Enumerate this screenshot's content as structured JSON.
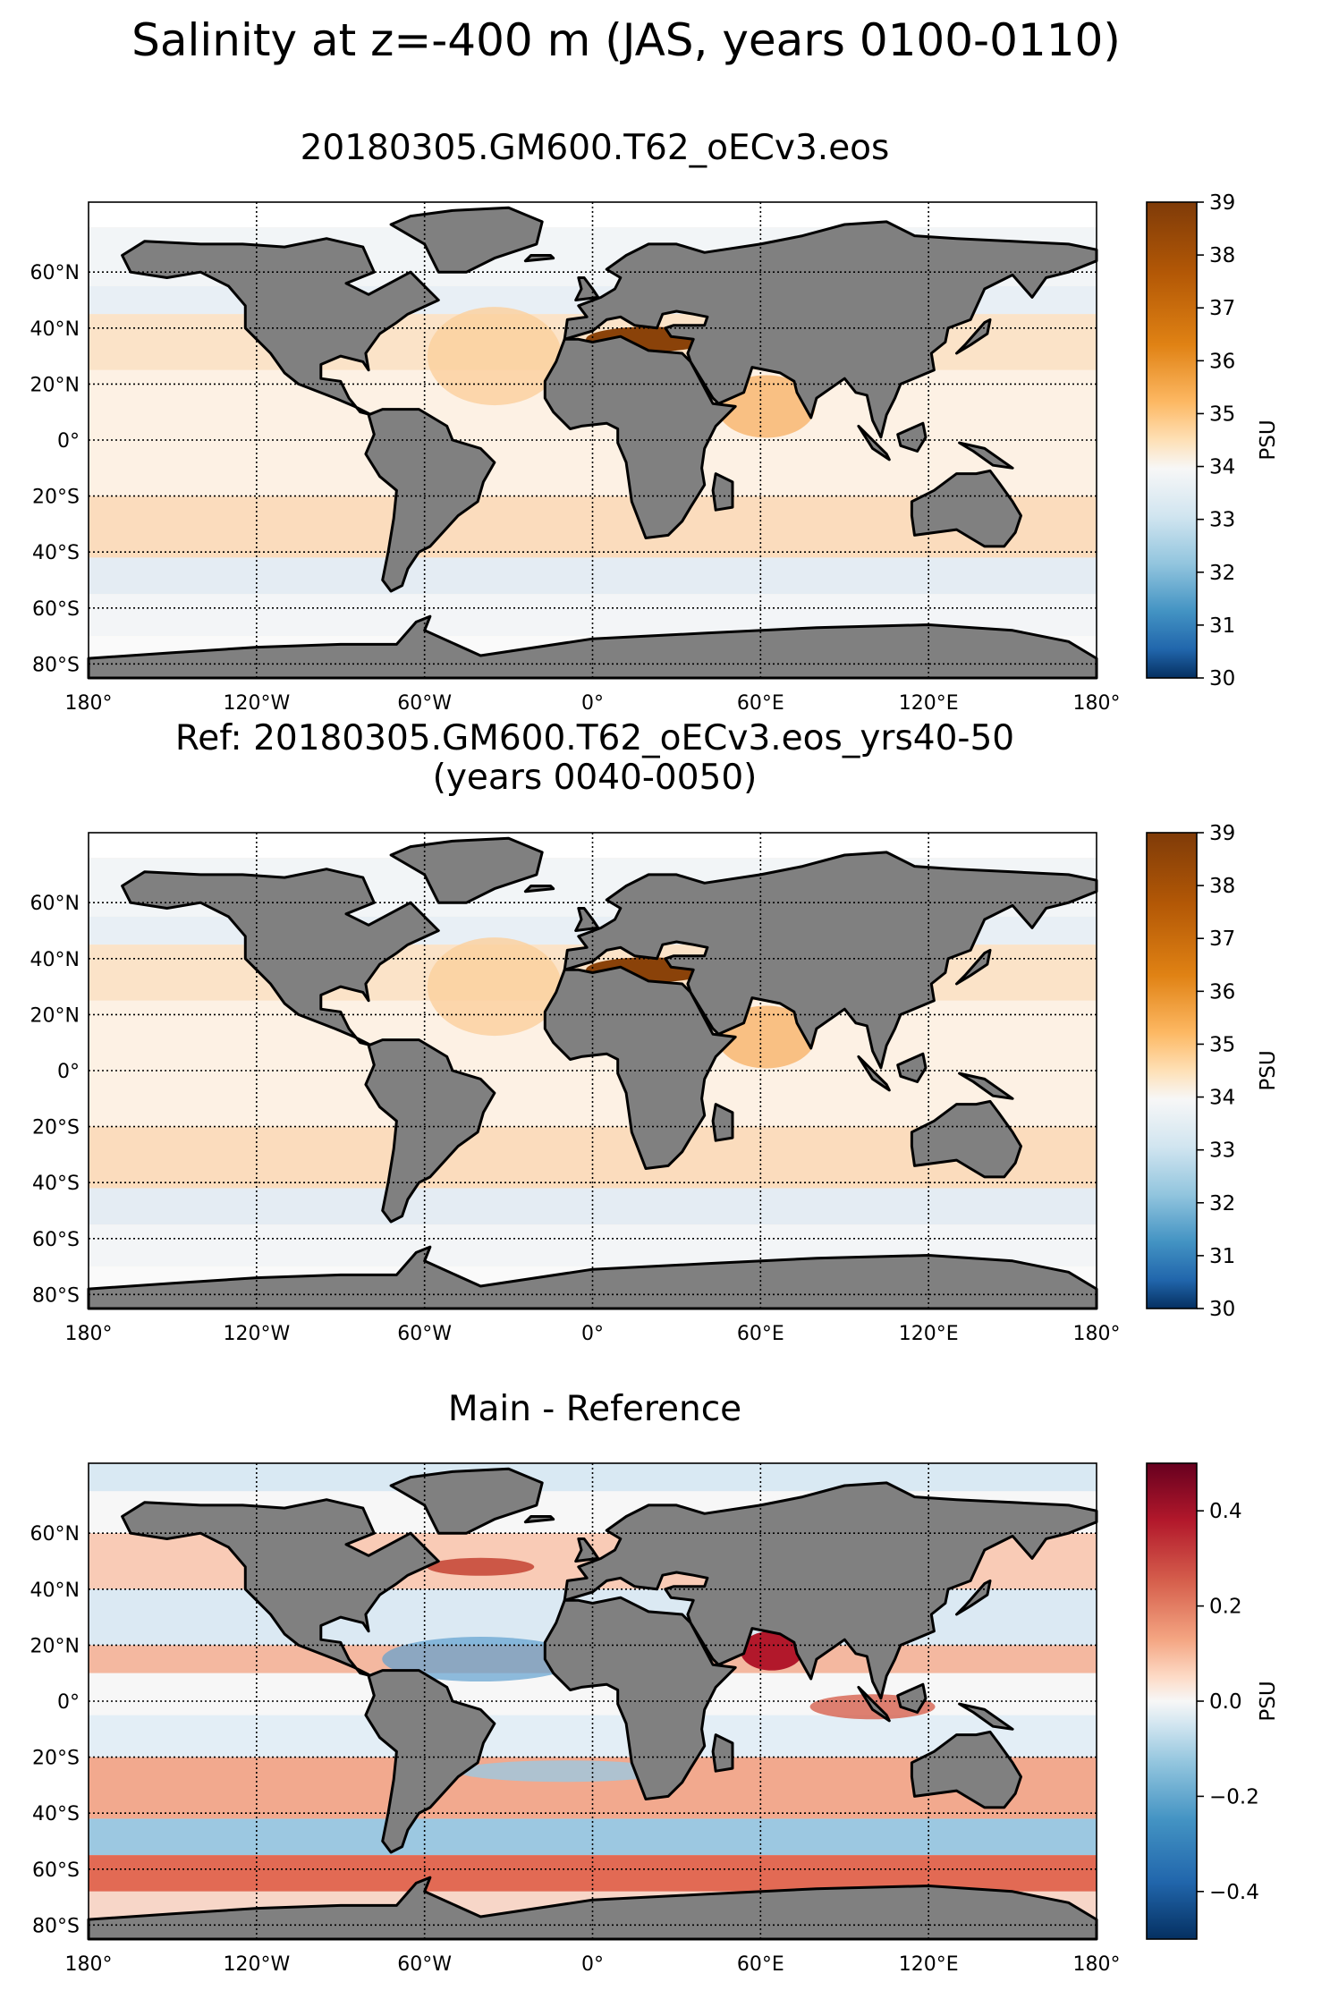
{
  "figure": {
    "title": "Salinity at z=-400 m (JAS, years 0100-0110)"
  },
  "land_color": "#808080",
  "grid_lines": true,
  "panels": [
    {
      "title_lines": [
        "20180305.GM600.T62_oECv3.eos"
      ],
      "colormap": "salinity-brown-blue",
      "colorbar": {
        "label": "PSU",
        "range": [
          30,
          39
        ],
        "ticks": [
          "39",
          "38",
          "37",
          "36",
          "35",
          "34",
          "33",
          "32",
          "31",
          "30"
        ]
      }
    },
    {
      "title_lines": [
        "Ref: 20180305.GM600.T62_oECv3.eos_yrs40-50",
        "(years 0040-0050)"
      ],
      "colormap": "salinity-brown-blue",
      "colorbar": {
        "label": "PSU",
        "range": [
          30,
          39
        ],
        "ticks": [
          "39",
          "38",
          "37",
          "36",
          "35",
          "34",
          "33",
          "32",
          "31",
          "30"
        ]
      }
    },
    {
      "title_lines": [
        "Main - Reference"
      ],
      "colormap": "red-white-blue-diverging",
      "colorbar": {
        "label": "PSU",
        "range": [
          -0.5,
          0.5
        ],
        "ticks": [
          "0.4",
          "0.2",
          "0.0",
          "−0.2",
          "−0.4"
        ]
      }
    }
  ],
  "axes": {
    "lon_ticks": [
      "180°",
      "120°W",
      "60°W",
      "0°",
      "60°E",
      "120°E",
      "180°"
    ],
    "lat_ticks": [
      "60°N",
      "40°N",
      "20°N",
      "0°",
      "20°S",
      "40°S",
      "60°S",
      "80°S"
    ]
  }
}
